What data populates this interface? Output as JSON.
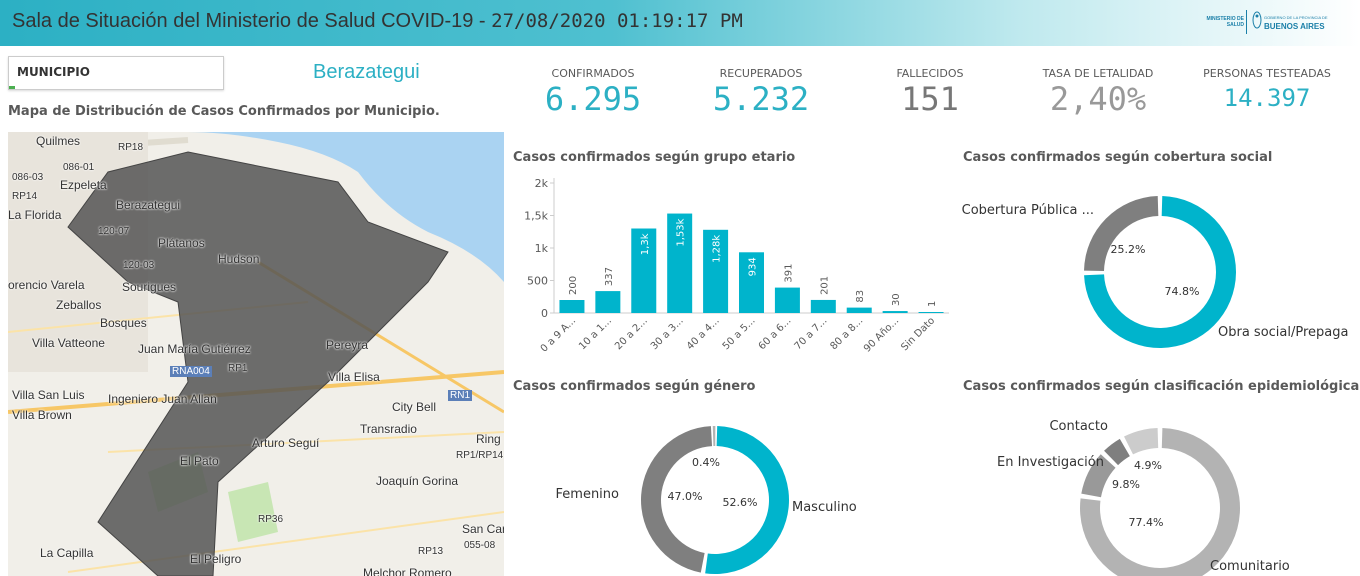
{
  "header": {
    "title_prefix": "Sala de Situación del Ministerio de Salud COVID-19 - ",
    "timestamp": "27/08/2020 01:19:17 PM",
    "logo_ministry": "MINISTERIO DE SALUD",
    "logo_gob": "GOBIERNO DE LA PROVINCIA DE",
    "logo_province": "BUENOS AIRES"
  },
  "filter": {
    "label": "MUNICIPIO"
  },
  "municipality": "Berazategui",
  "map": {
    "title": "Mapa de Distribución de Casos Confirmados por Municipio.",
    "labels": [
      "Quilmes",
      "RP18",
      "086-01",
      "086-03",
      "Ezpeleta",
      "RP14",
      "La Florida",
      "Berazategui",
      "120-07",
      "Plátanos",
      "Hudson",
      "120-03",
      "orencio Varela",
      "Sourigues",
      "Zeballos",
      "Bosques",
      "Villa Vatteone",
      "Juan María Gutiérrez",
      "Pereyra",
      "RNA004",
      "RP1",
      "Villa Elisa",
      "Villa San Luis",
      "Villa Brown",
      "Ingeniero Juan Allan",
      "RN1",
      "City Bell",
      "Arturo Seguí",
      "Transradio",
      "Ring",
      "RP1/RP14",
      "El Pato",
      "Joaquín Gorina",
      "RP36",
      "San Car",
      "055-08",
      "La Capilla",
      "El Peligro",
      "RP13",
      "Melchor Romero"
    ]
  },
  "kpis": [
    {
      "label": "CONFIRMADOS",
      "value": "6.295",
      "color": "#2cb0c4"
    },
    {
      "label": "RECUPERADOS",
      "value": "5.232",
      "color": "#2cb0c4"
    },
    {
      "label": "FALLECIDOS",
      "value": "151",
      "color": "#777777"
    },
    {
      "label": "TASA DE LETALIDAD",
      "value": "2,40%",
      "color": "#999999"
    },
    {
      "label": "PERSONAS TESTEADAS",
      "value": "14.397",
      "color": "#2cb0c4"
    }
  ],
  "colors": {
    "accent": "#00b4cc",
    "gray": "#7f7f7f",
    "lightgray": "#b3b3b3"
  },
  "chart_data": [
    {
      "type": "bar",
      "title": "Casos confirmados según grupo etario",
      "categories": [
        "0 a 9 A...",
        "10 a 1...",
        "20 a 2...",
        "30 a 3...",
        "40 a 4...",
        "50 a 5...",
        "60 a 6...",
        "70 a 7...",
        "80 a 8...",
        "90 Año...",
        "Sin Dato"
      ],
      "values": [
        200,
        337,
        1300,
        1530,
        1280,
        934,
        391,
        201,
        83,
        30,
        1
      ],
      "data_labels": [
        "200",
        "337",
        "1,3k",
        "1,53k",
        "1,28k",
        "934",
        "391",
        "201",
        "83",
        "30",
        "1"
      ],
      "y_ticks": [
        0,
        500,
        1000,
        1500,
        2000
      ],
      "y_tick_labels": [
        "0",
        "500",
        "1k",
        "1,5k",
        "2k"
      ],
      "ylim": [
        0,
        2000
      ],
      "color": "#00b4cc"
    },
    {
      "type": "pie",
      "title": "Casos confirmados según cobertura social",
      "labels": [
        "Obra social/Prepaga",
        "Cobertura Pública ..."
      ],
      "values": [
        74.8,
        25.2
      ],
      "value_labels": [
        "74.8%",
        "25.2%"
      ],
      "colors": [
        "#00b4cc",
        "#7f7f7f"
      ]
    },
    {
      "type": "pie",
      "title": "Casos confirmados según género",
      "labels": [
        "Masculino",
        "Femenino",
        ""
      ],
      "values": [
        52.6,
        47.0,
        0.4
      ],
      "value_labels": [
        "52.6%",
        "47.0%",
        "0.4%"
      ],
      "colors": [
        "#00b4cc",
        "#7f7f7f",
        "#b3b3b3"
      ]
    },
    {
      "type": "pie",
      "title": "Casos confirmados según clasificación epidemiológica",
      "labels": [
        "Comunitario",
        "En Investigación",
        "Contacto",
        ""
      ],
      "values": [
        77.4,
        9.8,
        4.9,
        7.9
      ],
      "value_labels": [
        "77.4%",
        "9.8%",
        "4.9%",
        ""
      ],
      "colors": [
        "#b3b3b3",
        "#999999",
        "#7f7f7f",
        "#cccccc"
      ]
    }
  ]
}
